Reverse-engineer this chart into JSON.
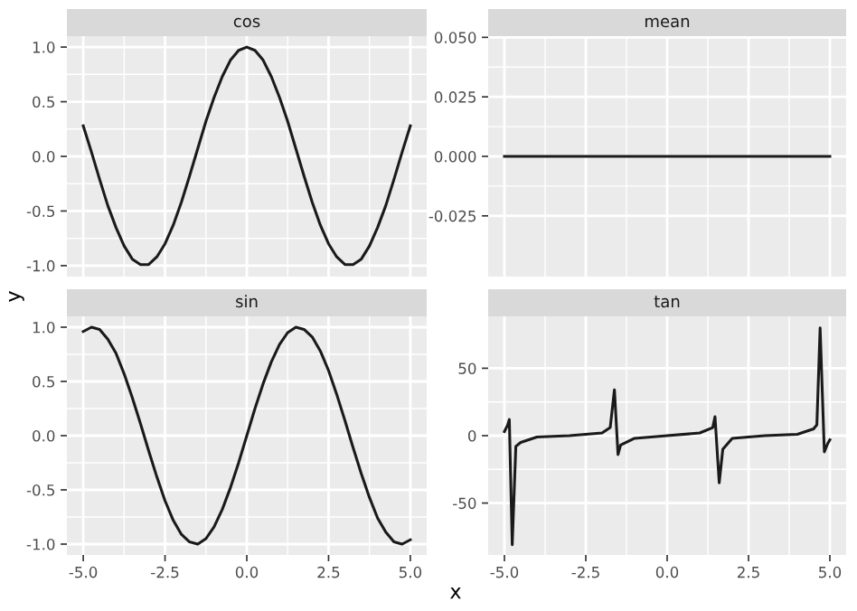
{
  "chart_data": [
    {
      "type": "line",
      "title": "cos",
      "ylabel": "y",
      "tick_labels": "y",
      "grid": true,
      "xlim": [
        -5.5,
        5.5
      ],
      "xticks": [
        -5,
        -2.5,
        0,
        2.5,
        5
      ],
      "ylim": [
        -1.1,
        1.1
      ],
      "yticks": [
        {
          "value": -1,
          "label": "-1.0"
        },
        {
          "value": -0.5,
          "label": "-0.5"
        },
        {
          "value": 0,
          "label": "0.0"
        },
        {
          "value": 0.5,
          "label": "0.5"
        },
        {
          "value": 1,
          "label": "1.0"
        }
      ],
      "series": [
        {
          "color": "#1a1a1a",
          "x": [
            -5,
            -4.75,
            -4.5,
            -4.25,
            -4,
            -3.75,
            -3.5,
            -3.25,
            -3,
            -2.75,
            -2.5,
            -2.25,
            -2,
            -1.75,
            -1.5,
            -1.25,
            -1,
            -0.75,
            -0.5,
            -0.25,
            0,
            0.25,
            0.5,
            0.75,
            1,
            1.25,
            1.5,
            1.75,
            2,
            2.25,
            2.5,
            2.75,
            3,
            3.25,
            3.5,
            3.75,
            4,
            4.25,
            4.5,
            4.75,
            5
          ],
          "values": [
            0.28,
            0.04,
            -0.21,
            -0.45,
            -0.65,
            -0.82,
            -0.94,
            -0.99,
            -0.99,
            -0.92,
            -0.8,
            -0.63,
            -0.42,
            -0.18,
            0.07,
            0.32,
            0.54,
            0.73,
            0.88,
            0.97,
            1.0,
            0.97,
            0.88,
            0.73,
            0.54,
            0.32,
            0.07,
            -0.18,
            -0.42,
            -0.63,
            -0.8,
            -0.92,
            -0.99,
            -0.99,
            -0.94,
            -0.82,
            -0.65,
            -0.45,
            -0.21,
            0.04,
            0.28
          ]
        }
      ]
    },
    {
      "type": "line",
      "title": "mean",
      "tick_labels": "y",
      "grid": true,
      "xlim": [
        -5.5,
        5.5
      ],
      "xticks": [
        -5,
        -2.5,
        0,
        2.5,
        5
      ],
      "ylim": [
        -0.0505,
        0.0505
      ],
      "yticks": [
        {
          "value": -0.025,
          "label": "-0.025"
        },
        {
          "value": 0,
          "label": "0.000"
        },
        {
          "value": 0.025,
          "label": "0.025"
        },
        {
          "value": 0.05,
          "label": "0.050"
        }
      ],
      "series": [
        {
          "color": "#1a1a1a",
          "x": [
            -5,
            5
          ],
          "values": [
            0,
            0
          ]
        }
      ]
    },
    {
      "type": "line",
      "title": "sin",
      "grid": true,
      "xlim": [
        -5.5,
        5.5
      ],
      "xticks": [
        {
          "value": -5,
          "label": "-5.0"
        },
        {
          "value": -2.5,
          "label": "-2.5"
        },
        {
          "value": 0,
          "label": "0.0"
        },
        {
          "value": 2.5,
          "label": "2.5"
        },
        {
          "value": 5,
          "label": "5.0"
        }
      ],
      "ylim": [
        -1.1,
        1.1
      ],
      "yticks": [
        {
          "value": -1,
          "label": "-1.0"
        },
        {
          "value": -0.5,
          "label": "-0.5"
        },
        {
          "value": 0,
          "label": "0.0"
        },
        {
          "value": 0.5,
          "label": "0.5"
        },
        {
          "value": 1,
          "label": "1.0"
        }
      ],
      "series": [
        {
          "color": "#1a1a1a",
          "x": [
            -5,
            -4.75,
            -4.5,
            -4.25,
            -4,
            -3.75,
            -3.5,
            -3.25,
            -3,
            -2.75,
            -2.5,
            -2.25,
            -2,
            -1.75,
            -1.5,
            -1.25,
            -1,
            -0.75,
            -0.5,
            -0.25,
            0,
            0.25,
            0.5,
            0.75,
            1,
            1.25,
            1.5,
            1.75,
            2,
            2.25,
            2.5,
            2.75,
            3,
            3.25,
            3.5,
            3.75,
            4,
            4.25,
            4.5,
            4.75,
            5
          ],
          "values": [
            0.96,
            1.0,
            0.98,
            0.89,
            0.76,
            0.57,
            0.35,
            0.11,
            -0.14,
            -0.38,
            -0.6,
            -0.78,
            -0.91,
            -0.98,
            -1.0,
            -0.95,
            -0.84,
            -0.68,
            -0.48,
            -0.25,
            0,
            0.25,
            0.48,
            0.68,
            0.84,
            0.95,
            1.0,
            0.98,
            0.91,
            0.78,
            0.6,
            0.38,
            0.14,
            -0.11,
            -0.35,
            -0.57,
            -0.76,
            -0.89,
            -0.98,
            -1.0,
            -0.96
          ]
        }
      ]
    },
    {
      "type": "line",
      "title": "tan",
      "xlabel": "x",
      "grid": true,
      "xlim": [
        -5.5,
        5.5
      ],
      "xticks": [
        {
          "value": -5,
          "label": "-5.0"
        },
        {
          "value": -2.5,
          "label": "-2.5"
        },
        {
          "value": 0,
          "label": "0.0"
        },
        {
          "value": 2.5,
          "label": "2.5"
        },
        {
          "value": 5,
          "label": "5.0"
        }
      ],
      "ylim": [
        -88.5,
        88.5
      ],
      "yticks": [
        -50,
        0,
        50
      ],
      "series": [
        {
          "color": "#1a1a1a",
          "x": [
            -5,
            -4.9,
            -4.85,
            -4.76,
            -4.65,
            -4.5,
            -4,
            -3,
            -2.5,
            -2,
            -1.75,
            -1.62,
            -1.51,
            -1.43,
            -1,
            0,
            1,
            1.4,
            1.47,
            1.6,
            1.71,
            2,
            3,
            4,
            4.5,
            4.6,
            4.7,
            4.83,
            4.93,
            5
          ],
          "values": [
            3,
            8,
            12,
            -81,
            -8,
            -5,
            -1,
            0,
            1,
            2,
            6,
            34,
            -14,
            -7,
            -2,
            0,
            2,
            6,
            14,
            -35,
            -10,
            -2,
            0,
            1,
            5,
            8,
            80,
            -12,
            -6,
            -3
          ]
        }
      ]
    }
  ]
}
